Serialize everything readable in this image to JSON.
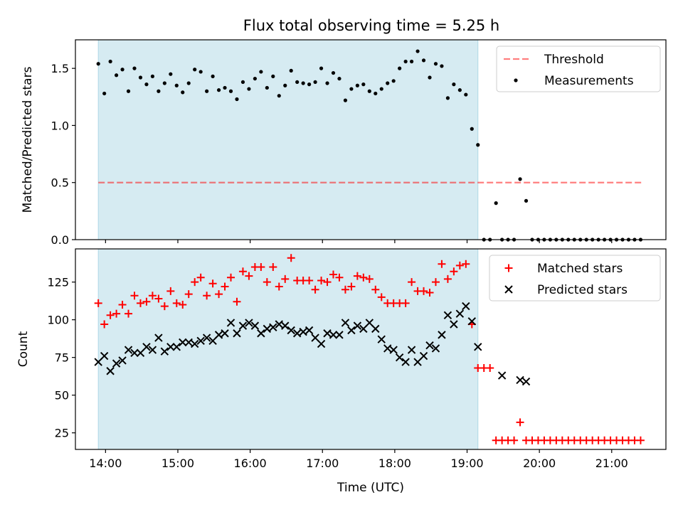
{
  "title": "Flux total observing time = 5.25 h",
  "colors": {
    "shade": "#add8e6",
    "threshold": "#ff0000",
    "measurement": "#000000",
    "matched": "#ff0000",
    "predicted": "#000000"
  },
  "chart_data": [
    {
      "type": "scatter",
      "ylabel": "Matched/Predicted stars",
      "xlim": [
        "13:35",
        "21:45"
      ],
      "ylim": [
        0,
        1.75
      ],
      "yticks": [
        "0.0",
        "0.5",
        "1.0",
        "1.5"
      ],
      "threshold": 0.5,
      "threshold_span": [
        "13:54",
        "21:25"
      ],
      "shaded_span": [
        "13:54",
        "19:09"
      ],
      "legend": {
        "position": "top-right",
        "items": [
          "Threshold",
          "Measurements"
        ]
      },
      "series": [
        {
          "name": "Measurements",
          "x": [
            "13:54",
            "13:59",
            "14:04",
            "14:09",
            "14:14",
            "14:19",
            "14:24",
            "14:29",
            "14:34",
            "14:39",
            "14:44",
            "14:49",
            "14:54",
            "14:59",
            "15:04",
            "15:09",
            "15:14",
            "15:19",
            "15:24",
            "15:29",
            "15:34",
            "15:39",
            "15:44",
            "15:49",
            "15:54",
            "15:59",
            "16:04",
            "16:09",
            "16:14",
            "16:19",
            "16:24",
            "16:29",
            "16:34",
            "16:39",
            "16:44",
            "16:49",
            "16:54",
            "16:59",
            "17:04",
            "17:09",
            "17:14",
            "17:19",
            "17:24",
            "17:29",
            "17:34",
            "17:39",
            "17:44",
            "17:49",
            "17:54",
            "17:59",
            "18:04",
            "18:09",
            "18:14",
            "18:19",
            "18:24",
            "18:29",
            "18:34",
            "18:39",
            "18:44",
            "18:49",
            "18:54",
            "18:59",
            "19:04",
            "19:09",
            "19:14",
            "19:19",
            "19:24",
            "19:29",
            "19:34",
            "19:39",
            "19:44",
            "19:49",
            "19:54",
            "19:59",
            "20:04",
            "20:09",
            "20:14",
            "20:19",
            "20:24",
            "20:29",
            "20:34",
            "20:39",
            "20:44",
            "20:49",
            "20:54",
            "20:59",
            "21:04",
            "21:09",
            "21:14",
            "21:19",
            "21:24"
          ],
          "values": [
            1.54,
            1.28,
            1.56,
            1.44,
            1.49,
            1.3,
            1.5,
            1.42,
            1.36,
            1.43,
            1.3,
            1.37,
            1.45,
            1.35,
            1.29,
            1.37,
            1.49,
            1.47,
            1.3,
            1.43,
            1.31,
            1.33,
            1.3,
            1.23,
            1.38,
            1.32,
            1.41,
            1.47,
            1.33,
            1.43,
            1.26,
            1.35,
            1.48,
            1.38,
            1.37,
            1.36,
            1.38,
            1.5,
            1.37,
            1.46,
            1.41,
            1.22,
            1.32,
            1.35,
            1.36,
            1.3,
            1.28,
            1.32,
            1.37,
            1.39,
            1.5,
            1.56,
            1.56,
            1.65,
            1.57,
            1.42,
            1.54,
            1.52,
            1.24,
            1.36,
            1.31,
            1.27,
            0.97,
            0.83,
            0,
            0,
            0.32,
            0,
            0,
            0,
            0.53,
            0.34,
            0,
            0,
            0,
            0,
            0,
            0,
            0,
            0,
            0,
            0,
            0,
            0,
            0,
            0,
            0,
            0,
            0,
            0,
            0
          ]
        }
      ]
    },
    {
      "type": "scatter",
      "xlabel": "Time (UTC)",
      "ylabel": "Count",
      "xlim": [
        "13:35",
        "21:45"
      ],
      "ylim": [
        14,
        147
      ],
      "yticks": [
        "25",
        "50",
        "75",
        "100",
        "125"
      ],
      "xticks": [
        "14:00",
        "15:00",
        "16:00",
        "17:00",
        "18:00",
        "19:00",
        "20:00",
        "21:00"
      ],
      "shaded_span": [
        "13:54",
        "19:09"
      ],
      "legend": {
        "position": "top-right",
        "items": [
          "Matched stars",
          "Predicted stars"
        ]
      },
      "series": [
        {
          "name": "Matched stars",
          "marker": "+",
          "x": [
            "13:54",
            "13:59",
            "14:04",
            "14:09",
            "14:14",
            "14:19",
            "14:24",
            "14:29",
            "14:34",
            "14:39",
            "14:44",
            "14:49",
            "14:54",
            "14:59",
            "15:04",
            "15:09",
            "15:14",
            "15:19",
            "15:24",
            "15:29",
            "15:34",
            "15:39",
            "15:44",
            "15:49",
            "15:54",
            "15:59",
            "16:04",
            "16:09",
            "16:14",
            "16:19",
            "16:24",
            "16:29",
            "16:34",
            "16:39",
            "16:44",
            "16:49",
            "16:54",
            "16:59",
            "17:04",
            "17:09",
            "17:14",
            "17:19",
            "17:24",
            "17:29",
            "17:34",
            "17:39",
            "17:44",
            "17:49",
            "17:54",
            "17:59",
            "18:04",
            "18:09",
            "18:14",
            "18:19",
            "18:24",
            "18:29",
            "18:34",
            "18:39",
            "18:44",
            "18:49",
            "18:54",
            "18:59",
            "19:04",
            "19:09",
            "19:14",
            "19:19",
            "19:24",
            "19:29",
            "19:34",
            "19:39",
            "19:44",
            "19:49",
            "19:54",
            "19:59",
            "20:04",
            "20:09",
            "20:14",
            "20:19",
            "20:24",
            "20:29",
            "20:34",
            "20:39",
            "20:44",
            "20:49",
            "20:54",
            "20:59",
            "21:04",
            "21:09",
            "21:14",
            "21:19",
            "21:24"
          ],
          "values": [
            111,
            97,
            103,
            104,
            110,
            104,
            116,
            111,
            112,
            116,
            114,
            109,
            119,
            111,
            110,
            117,
            125,
            128,
            116,
            124,
            117,
            122,
            128,
            112,
            132,
            129,
            135,
            135,
            125,
            135,
            122,
            127,
            141,
            126,
            126,
            126,
            120,
            126,
            125,
            130,
            128,
            120,
            122,
            129,
            128,
            127,
            120,
            115,
            111,
            111,
            111,
            111,
            125,
            119,
            119,
            118,
            125,
            137,
            127,
            132,
            136,
            137,
            97,
            68,
            68,
            68,
            20,
            20,
            20,
            20,
            32,
            20,
            20,
            20,
            20,
            20,
            20,
            20,
            20,
            20,
            20,
            20,
            20,
            20,
            20,
            20,
            20,
            20,
            20,
            20,
            20
          ]
        },
        {
          "name": "Predicted stars",
          "marker": "x",
          "x": [
            "13:54",
            "13:59",
            "14:04",
            "14:09",
            "14:14",
            "14:19",
            "14:24",
            "14:29",
            "14:34",
            "14:39",
            "14:44",
            "14:49",
            "14:54",
            "14:59",
            "15:04",
            "15:09",
            "15:14",
            "15:19",
            "15:24",
            "15:29",
            "15:34",
            "15:39",
            "15:44",
            "15:49",
            "15:54",
            "15:59",
            "16:04",
            "16:09",
            "16:14",
            "16:19",
            "16:24",
            "16:29",
            "16:34",
            "16:39",
            "16:44",
            "16:49",
            "16:54",
            "16:59",
            "17:04",
            "17:09",
            "17:14",
            "17:19",
            "17:24",
            "17:29",
            "17:34",
            "17:39",
            "17:44",
            "17:49",
            "17:54",
            "17:59",
            "18:04",
            "18:09",
            "18:14",
            "18:19",
            "18:24",
            "18:29",
            "18:34",
            "18:39",
            "18:44",
            "18:49",
            "18:54",
            "18:59",
            "19:04",
            "19:09",
            "19:29",
            "19:44",
            "19:49"
          ],
          "values": [
            72,
            76,
            66,
            71,
            73,
            80,
            78,
            78,
            82,
            80,
            88,
            79,
            82,
            82,
            85,
            85,
            84,
            86,
            88,
            86,
            90,
            91,
            98,
            91,
            96,
            98,
            96,
            91,
            94,
            95,
            97,
            96,
            93,
            91,
            92,
            93,
            88,
            84,
            91,
            90,
            90,
            98,
            93,
            96,
            94,
            98,
            94,
            87,
            81,
            80,
            75,
            72,
            80,
            72,
            76,
            83,
            81,
            90,
            103,
            97,
            104,
            109,
            99,
            82,
            63,
            60,
            59
          ]
        }
      ]
    }
  ]
}
